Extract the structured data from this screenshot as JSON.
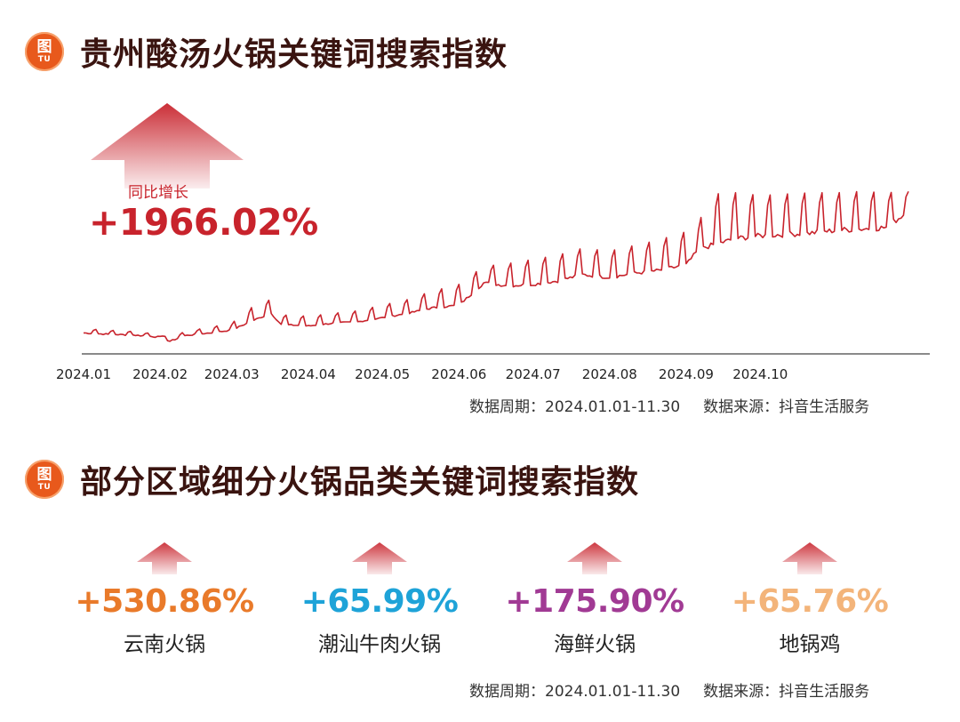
{
  "section1": {
    "badge_top": "图",
    "badge_bottom": "TU",
    "title": "贵州酸汤火锅关键词搜索指数"
  },
  "growth": {
    "label": "同比增长",
    "value": "+1966.02%"
  },
  "source1": {
    "period": "数据周期：2024.01.01-11.30",
    "source": "数据来源：抖音生活服务"
  },
  "section2": {
    "badge_top": "图",
    "badge_bottom": "TU",
    "title": "部分区域细分火锅品类关键词搜索指数"
  },
  "categories": [
    {
      "value": "+530.86%",
      "name": "云南火锅",
      "color": "#e97a2a"
    },
    {
      "value": "+65.99%",
      "name": "潮汕牛肉火锅",
      "color": "#1ea3d8"
    },
    {
      "value": "+175.90%",
      "name": "海鲜火锅",
      "color": "#a13a94"
    },
    {
      "value": "+65.76%",
      "name": "地锅鸡",
      "color": "#f3b47a"
    }
  ],
  "source2": {
    "period": "数据周期：2024.01.01-11.30",
    "source": "数据来源：抖音生活服务"
  },
  "chart_data": {
    "type": "line",
    "title": "贵州酸汤火锅关键词搜索指数",
    "xlabel": "",
    "ylabel": "",
    "x_ticks": [
      "2024.01",
      "2024.02",
      "2024.03",
      "2024.04",
      "2024.05",
      "2024.06",
      "2024.07",
      "2024.08",
      "2024.09",
      "2024.10"
    ],
    "x_range": [
      "2024.01.01",
      "2024.11.30"
    ],
    "y_axis_shown": false,
    "grid": false,
    "line_color": "#c8232c",
    "series": [
      {
        "x": [
          "2024.01.01",
          "2024.01.11",
          "2024.01.21",
          "2024.02.01",
          "2024.02.05",
          "2024.02.11",
          "2024.02.21",
          "2024.03.01",
          "2024.03.11",
          "2024.03.17",
          "2024.03.21",
          "2024.04.01",
          "2024.04.11",
          "2024.04.21",
          "2024.05.01",
          "2024.05.11",
          "2024.05.21",
          "2024.06.01",
          "2024.06.11",
          "2024.06.21",
          "2024.07.01",
          "2024.07.11",
          "2024.07.21",
          "2024.08.01",
          "2024.08.11",
          "2024.08.21",
          "2024.09.01",
          "2024.09.06",
          "2024.09.11",
          "2024.09.21",
          "2024.10.01",
          "2024.10.11",
          "2024.10.21",
          "2024.11.01",
          "2024.11.11",
          "2024.11.21",
          "2024.11.30"
        ],
        "y": [
          20,
          18,
          17,
          14,
          8,
          16,
          20,
          24,
          40,
          48,
          32,
          30,
          34,
          36,
          42,
          48,
          56,
          60,
          92,
          88,
          90,
          95,
          104,
          100,
          106,
          110,
          118,
          140,
          146,
          156,
          160,
          162,
          164,
          168,
          170,
          172,
          196
        ],
        "peaks_y": [
          26,
          24,
          22,
          18,
          12,
          22,
          28,
          34,
          62,
          68,
          46,
          44,
          48,
          52,
          60,
          68,
          80,
          90,
          116,
          120,
          126,
          132,
          142,
          138,
          146,
          154,
          166,
          178,
          220,
          222,
          218,
          220,
          222,
          222,
          224,
          222,
          224
        ]
      }
    ]
  }
}
